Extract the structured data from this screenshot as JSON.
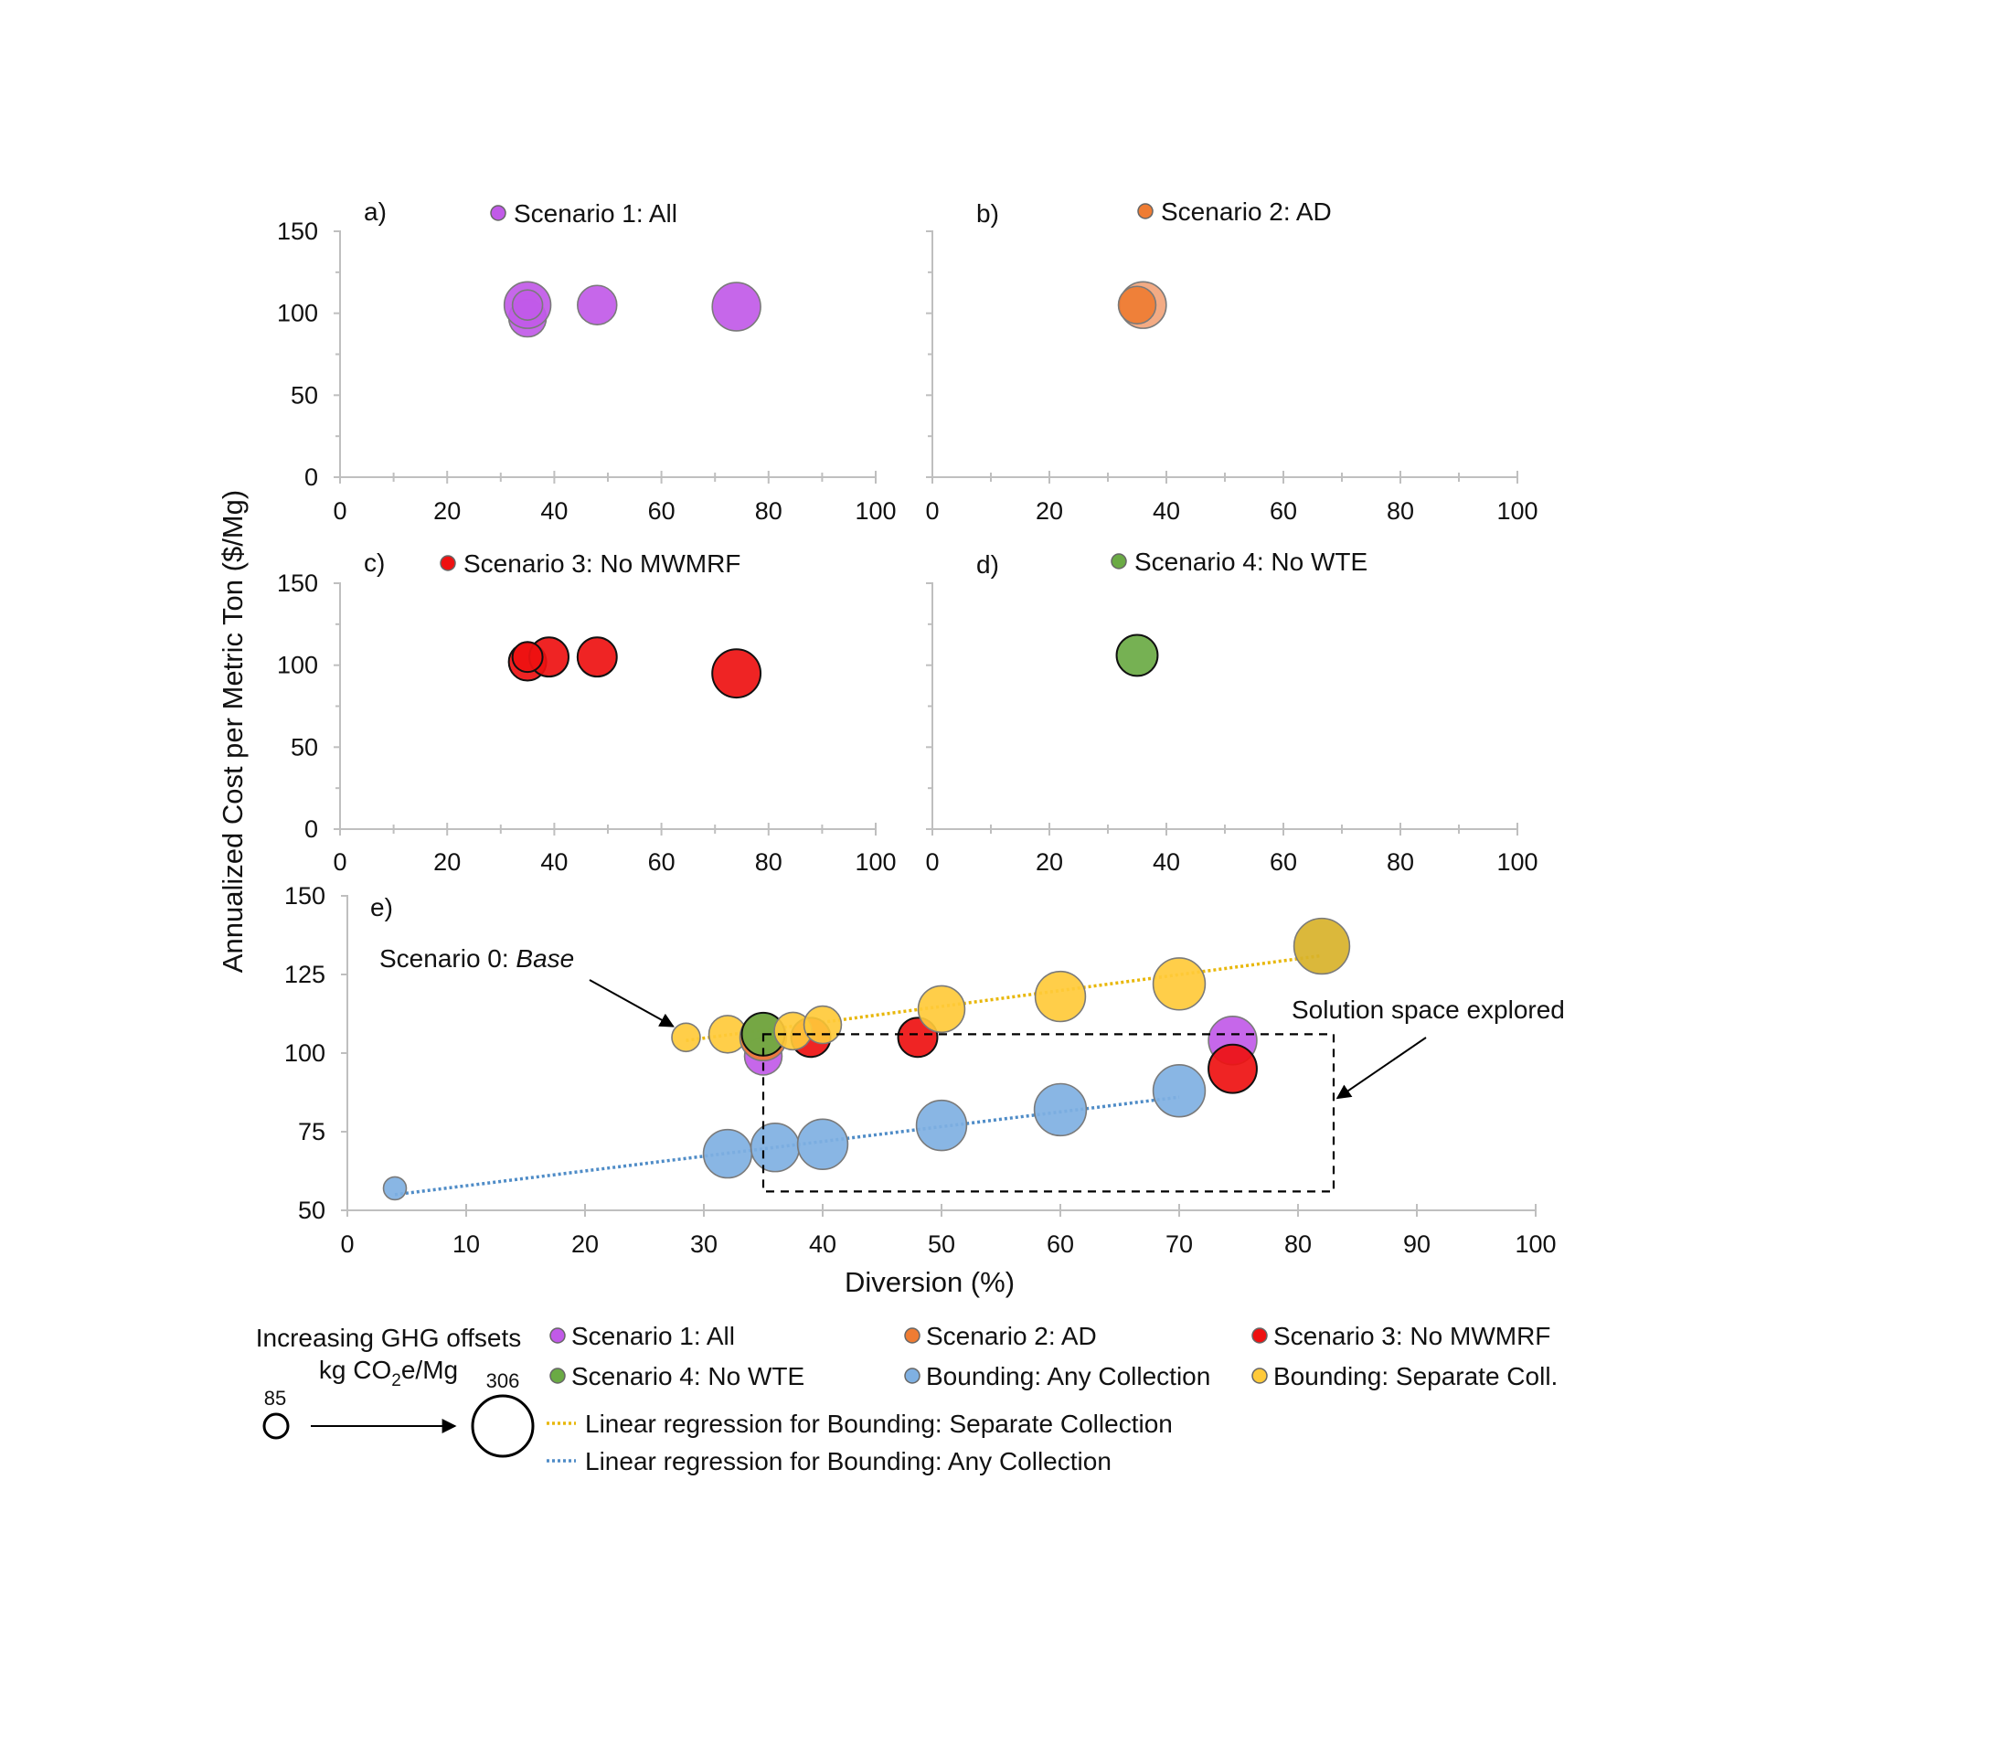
{
  "figure": {
    "ylabel": "Annualized Cost per Metric Ton ($/Mg)",
    "xlabel": "Diversion (%)"
  },
  "colors": {
    "scenario1": "#c15ae8",
    "scenario2": "#ef7c33",
    "scenario2_light": "#f2a47a",
    "scenario3": "#ee1111",
    "scenario4": "#6aaa44",
    "bounding_any": "#7fb0e2",
    "bounding_sep": "#ffca3a",
    "bounding_sep_dark": "#d8b22a",
    "reg_sep": "#e8b70a",
    "reg_any": "#4f8cc7",
    "axis": "#bfbfbf"
  },
  "chart_data": [
    {
      "panel": "a)",
      "type": "scatter",
      "legend": "Scenario 1: All",
      "xlim": [
        0,
        100
      ],
      "ylim": [
        0,
        150
      ],
      "xticks": [
        "0",
        "20",
        "40",
        "60",
        "80",
        "100"
      ],
      "yticks": [
        "0",
        "50",
        "100",
        "150"
      ],
      "points": [
        {
          "x": 35,
          "y": 97,
          "ghg": 180,
          "color": "scenario1"
        },
        {
          "x": 35,
          "y": 105,
          "ghg": 230,
          "color": "scenario1"
        },
        {
          "x": 35,
          "y": 105,
          "ghg": 140,
          "color": "scenario1"
        },
        {
          "x": 48,
          "y": 105,
          "ghg": 190,
          "color": "scenario1"
        },
        {
          "x": 74,
          "y": 104,
          "ghg": 240,
          "color": "scenario1"
        }
      ]
    },
    {
      "panel": "b)",
      "type": "scatter",
      "legend": "Scenario 2: AD",
      "xlim": [
        0,
        100
      ],
      "ylim": [
        0,
        150
      ],
      "xticks": [
        "0",
        "20",
        "40",
        "60",
        "80",
        "100"
      ],
      "yticks": [],
      "points": [
        {
          "x": 36,
          "y": 105,
          "ghg": 230,
          "color": "scenario2_light"
        },
        {
          "x": 35,
          "y": 105,
          "ghg": 180,
          "color": "scenario2"
        }
      ]
    },
    {
      "panel": "c)",
      "type": "scatter",
      "legend": "Scenario 3: No MWMRF",
      "xlim": [
        0,
        100
      ],
      "ylim": [
        0,
        150
      ],
      "xticks": [
        "0",
        "20",
        "40",
        "60",
        "80",
        "100"
      ],
      "yticks": [
        "0",
        "50",
        "100",
        "150"
      ],
      "points": [
        {
          "x": 35,
          "y": 102,
          "ghg": 180,
          "color": "scenario3"
        },
        {
          "x": 39,
          "y": 105,
          "ghg": 190,
          "color": "scenario3"
        },
        {
          "x": 48,
          "y": 105,
          "ghg": 190,
          "color": "scenario3"
        },
        {
          "x": 35,
          "y": 105,
          "ghg": 140,
          "color": "scenario3"
        },
        {
          "x": 74,
          "y": 95,
          "ghg": 240,
          "color": "scenario3"
        }
      ]
    },
    {
      "panel": "d)",
      "type": "scatter",
      "legend": "Scenario 4: No WTE",
      "xlim": [
        0,
        100
      ],
      "ylim": [
        0,
        150
      ],
      "xticks": [
        "0",
        "20",
        "40",
        "60",
        "80",
        "100"
      ],
      "yticks": [],
      "points": [
        {
          "x": 35,
          "y": 106,
          "ghg": 200,
          "color": "scenario4"
        }
      ]
    },
    {
      "panel": "e)",
      "type": "scatter",
      "xlim": [
        0,
        100
      ],
      "ylim": [
        50,
        150
      ],
      "xticks": [
        "0",
        "10",
        "20",
        "30",
        "40",
        "50",
        "60",
        "70",
        "80",
        "90",
        "100"
      ],
      "yticks": [
        "50",
        "75",
        "100",
        "125",
        "150"
      ],
      "annotations": {
        "base_prefix": "Scenario 0: ",
        "base_italic": "Base",
        "solution": "Solution space explored"
      },
      "solution_box": {
        "x": [
          35,
          83
        ],
        "y": [
          56,
          106
        ]
      },
      "base_point": {
        "x": 28.5,
        "y": 105
      },
      "regressions": [
        {
          "name": "Bounding: Separate Collection",
          "x": [
            28.5,
            82
          ],
          "y": [
            104,
            131
          ]
        },
        {
          "name": "Bounding: Any Collection",
          "x": [
            4,
            70
          ],
          "y": [
            55,
            86
          ]
        }
      ],
      "points": [
        {
          "x": 4,
          "y": 57,
          "ghg": 100,
          "color": "bounding_any"
        },
        {
          "x": 32,
          "y": 68,
          "ghg": 240,
          "color": "bounding_any"
        },
        {
          "x": 36,
          "y": 70,
          "ghg": 240,
          "color": "bounding_any"
        },
        {
          "x": 40,
          "y": 71,
          "ghg": 250,
          "color": "bounding_any"
        },
        {
          "x": 50,
          "y": 77,
          "ghg": 250,
          "color": "bounding_any"
        },
        {
          "x": 60,
          "y": 82,
          "ghg": 260,
          "color": "bounding_any"
        },
        {
          "x": 70,
          "y": 88,
          "ghg": 260,
          "color": "bounding_any"
        },
        {
          "x": 35,
          "y": 99,
          "ghg": 180,
          "color": "scenario1"
        },
        {
          "x": 74.5,
          "y": 104,
          "ghg": 240,
          "color": "scenario1"
        },
        {
          "x": 28.5,
          "y": 105,
          "ghg": 130,
          "color": "bounding_sep"
        },
        {
          "x": 32,
          "y": 106,
          "ghg": 180,
          "color": "bounding_sep"
        },
        {
          "x": 35,
          "y": 105,
          "ghg": 230,
          "color": "scenario2"
        },
        {
          "x": 39,
          "y": 105,
          "ghg": 190,
          "color": "scenario3"
        },
        {
          "x": 48,
          "y": 105,
          "ghg": 190,
          "color": "scenario3"
        },
        {
          "x": 74.5,
          "y": 95,
          "ghg": 240,
          "color": "scenario3"
        },
        {
          "x": 35,
          "y": 106,
          "ghg": 210,
          "color": "scenario4"
        },
        {
          "x": 37.5,
          "y": 107,
          "ghg": 180,
          "color": "bounding_sep"
        },
        {
          "x": 40,
          "y": 109,
          "ghg": 180,
          "color": "bounding_sep"
        },
        {
          "x": 50,
          "y": 114,
          "ghg": 230,
          "color": "bounding_sep"
        },
        {
          "x": 60,
          "y": 118,
          "ghg": 250,
          "color": "bounding_sep"
        },
        {
          "x": 70,
          "y": 122,
          "ghg": 260,
          "color": "bounding_sep"
        },
        {
          "x": 82,
          "y": 134,
          "ghg": 280,
          "color": "bounding_sep_dark"
        }
      ]
    }
  ],
  "legend": {
    "size_title_line1": "Increasing GHG offsets",
    "size_title_line2_prefix": "kg CO",
    "size_title_line2_sub": "2",
    "size_title_line2_suffix": "e/Mg",
    "size_min": "85",
    "size_max": "306",
    "entries": [
      {
        "label": "Scenario 1: All",
        "color": "scenario1"
      },
      {
        "label": "Scenario 2: AD",
        "color": "scenario2"
      },
      {
        "label": "Scenario 3: No MWMRF",
        "color": "scenario3"
      },
      {
        "label": "Scenario 4: No WTE",
        "color": "scenario4"
      },
      {
        "label": "Bounding: Any Collection",
        "color": "bounding_any"
      },
      {
        "label": "Bounding: Separate Coll.",
        "color": "bounding_sep"
      }
    ],
    "reg_sep_label": "Linear regression for Bounding: Separate Collection",
    "reg_any_label": "Linear regression for Bounding: Any Collection"
  }
}
